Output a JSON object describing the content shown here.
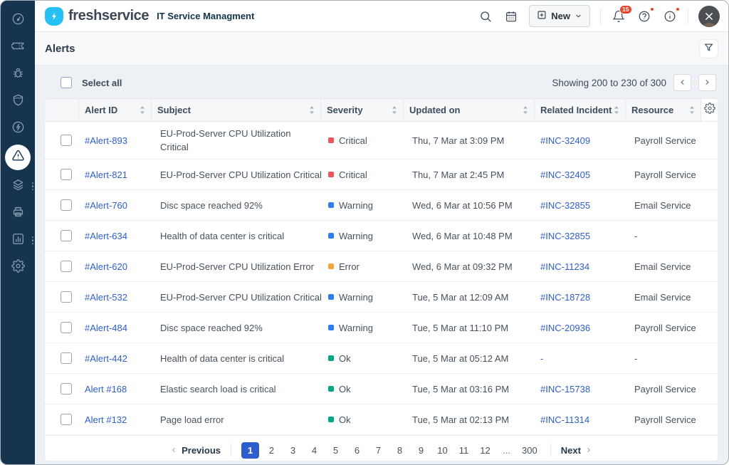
{
  "topbar": {
    "logo_text": "freshservice",
    "subtitle": "IT Service Managment",
    "new_label": "New",
    "bell_badge": "15",
    "icons": [
      "search-icon",
      "calendar-icon",
      "plus-square-icon",
      "chevron-down-icon",
      "bell-icon",
      "help-icon",
      "info-icon",
      "avatar"
    ]
  },
  "sidebar": {
    "icons": [
      "dashboard-icon",
      "ticket-icon",
      "bug-icon",
      "shield-icon",
      "bolt-circle-icon",
      "alert-triangle-icon",
      "layers-icon",
      "printer-icon",
      "bar-chart-icon",
      "gear-icon"
    ],
    "active_icon": "alert-triangle-icon"
  },
  "page": {
    "title": "Alerts"
  },
  "toolbar": {
    "select_all": "Select all",
    "showing": "Showing 200 to 230 of 300"
  },
  "table": {
    "columns": [
      "Alert ID",
      "Subject",
      "Severity",
      "Updated on",
      "Related Incident",
      "Resource"
    ],
    "severity_colors": {
      "Critical": "#f2545b",
      "Warning": "#2f7df6",
      "Error": "#f2a53c",
      "Ok": "#00a886"
    },
    "link_color": "#2e5fcc",
    "rows": [
      {
        "id": "#Alert-893",
        "subject": "EU-Prod-Server CPU Utilization Critical",
        "severity": "Critical",
        "updated": "Thu, 7 Mar at 3:09 PM",
        "incident": "#INC-32409",
        "resource": "Payroll Service",
        "wrap": true
      },
      {
        "id": "#Alert-821",
        "subject": "EU-Prod-Server CPU Utilization Critical",
        "severity": "Critical",
        "updated": "Thu, 7 Mar at 2:45 PM",
        "incident": "#INC-32405",
        "resource": "Payroll Service",
        "wrap": false
      },
      {
        "id": "#Alert-760",
        "subject": "Disc space reached 92%",
        "severity": "Warning",
        "updated": "Wed, 6 Mar at 10:56 PM",
        "incident": "#INC-32855",
        "resource": "Email Service",
        "wrap": false
      },
      {
        "id": "#Alert-634",
        "subject": "Health of data center is critical",
        "severity": "Warning",
        "updated": "Wed, 6 Mar at 10:48 PM",
        "incident": "#INC-32855",
        "resource": "-",
        "wrap": false
      },
      {
        "id": "#Alert-620",
        "subject": "EU-Prod-Server CPU Utilization Error",
        "severity": "Error",
        "updated": "Wed, 6 Mar at 09:32 PM",
        "incident": "#INC-11234",
        "resource": "Email Service",
        "wrap": false
      },
      {
        "id": "#Alert-532",
        "subject": "EU-Prod-Server CPU Utilization Critical",
        "severity": "Warning",
        "updated": "Tue, 5 Mar at 12:09 AM",
        "incident": "#INC-18728",
        "resource": "Email Service",
        "wrap": false
      },
      {
        "id": "#Alert-484",
        "subject": "Disc space reached 92%",
        "severity": "Warning",
        "updated": "Tue, 5 Mar at 11:10 PM",
        "incident": "#INC-20936",
        "resource": "Payroll Service",
        "wrap": false
      },
      {
        "id": "#Alert-442",
        "subject": "Health of data center is critical",
        "severity": "Ok",
        "updated": "Tue, 5 Mar at 05:12 AM",
        "incident": "-",
        "resource": "-",
        "wrap": false
      },
      {
        "id": "Alert #168",
        "subject": "Elastic search load is critical",
        "severity": "Ok",
        "updated": "Tue, 5 Mar at 03:16 PM",
        "incident": "#INC-15738",
        "resource": "Payroll Service",
        "wrap": false
      },
      {
        "id": "Alert #132",
        "subject": "Page load error",
        "severity": "Ok",
        "updated": "Tue, 5 Mar at 02:13 PM",
        "incident": "#INC-11314",
        "resource": "Payroll Service",
        "wrap": false
      }
    ]
  },
  "pagination": {
    "previous": "Previous",
    "next": "Next",
    "pages": [
      "1",
      "2",
      "3",
      "4",
      "5",
      "6",
      "7",
      "8",
      "9",
      "10",
      "11",
      "12",
      "...",
      "300"
    ],
    "active_page": "1"
  }
}
